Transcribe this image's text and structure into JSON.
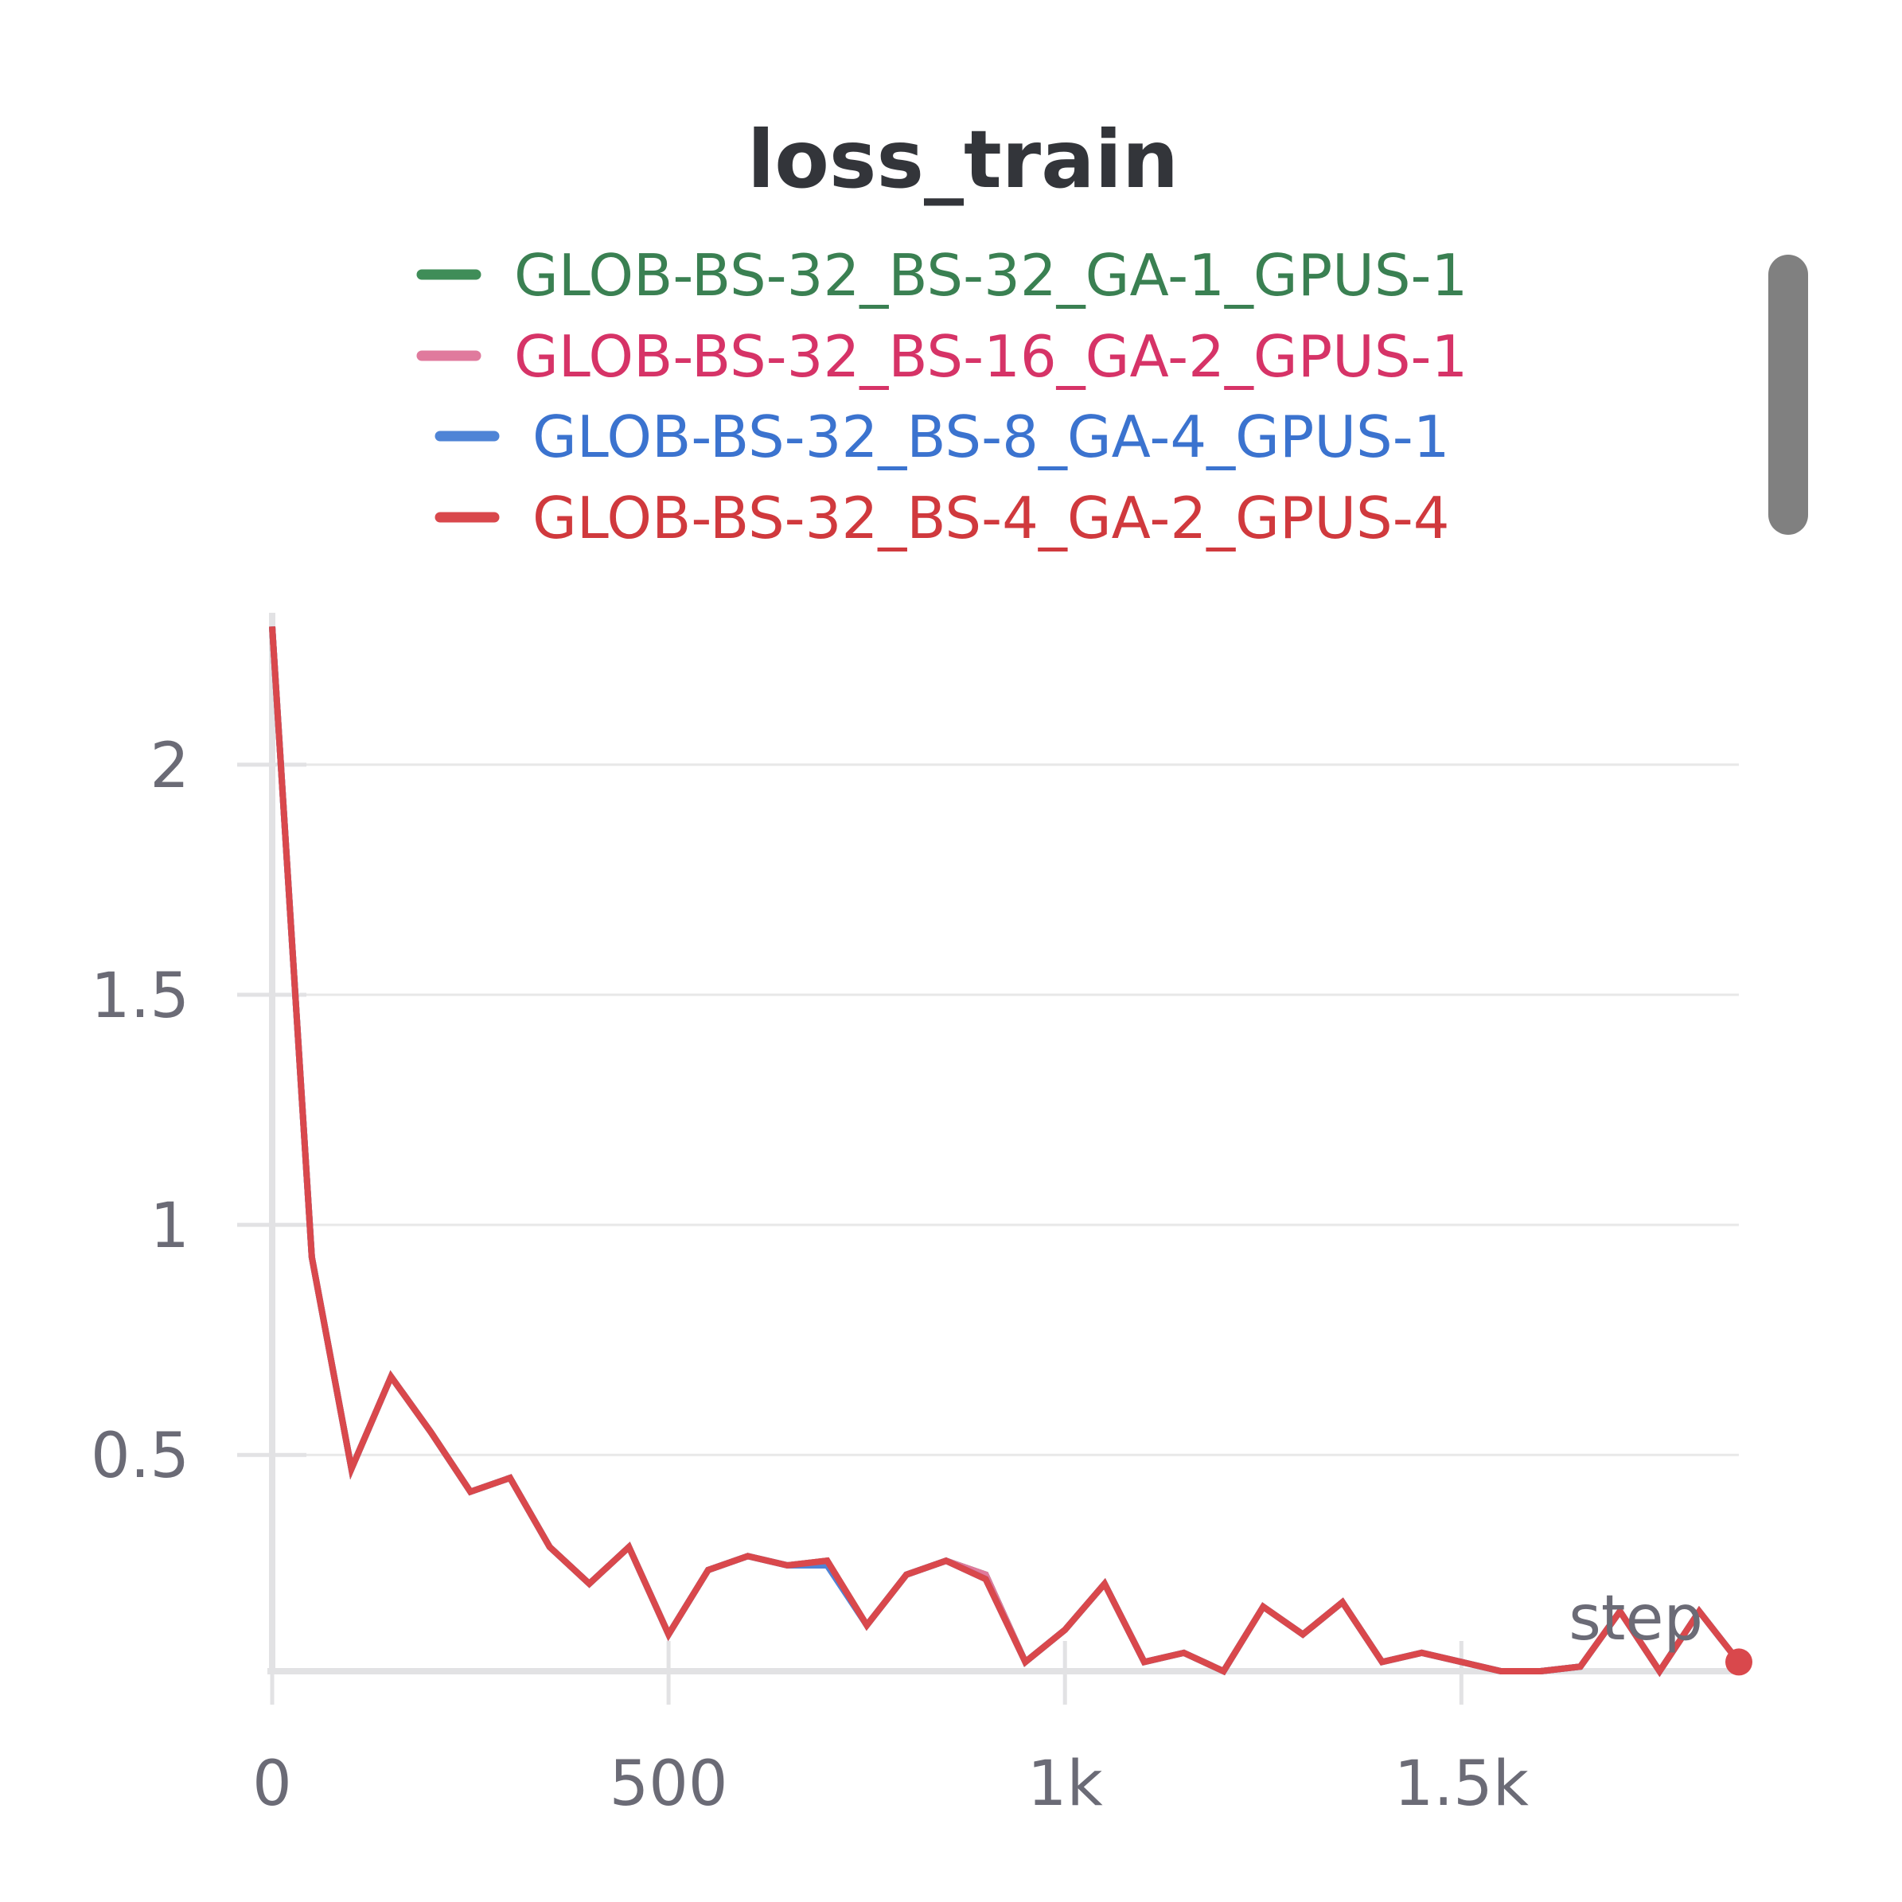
{
  "chart_data": {
    "type": "line",
    "title": "loss_train",
    "xlabel": "step",
    "ylabel": "",
    "xlim": [
      0,
      1850
    ],
    "ylim": [
      0.03,
      2.33
    ],
    "xticks": [
      0,
      500,
      1000,
      1500
    ],
    "xtick_labels": [
      "0",
      "500",
      "1k",
      "1.5k"
    ],
    "yticks": [
      0.5,
      1,
      1.5,
      2
    ],
    "ytick_labels": [
      "0.5",
      "1",
      "1.5",
      "2"
    ],
    "grid": true,
    "legend_position": "top-center",
    "series": [
      {
        "name": "GLOB-BS-32_BS-32_GA-1_GPUS-1",
        "color": "#3f8d58",
        "text_color": "#3a8052",
        "x": [
          0,
          50,
          100,
          150,
          200,
          250,
          300,
          350,
          400,
          450,
          500,
          550,
          600,
          650,
          700,
          750,
          800,
          850,
          900,
          950,
          1000,
          1050,
          1100,
          1150,
          1200,
          1250,
          1300,
          1350,
          1400,
          1450,
          1500,
          1550,
          1600,
          1650,
          1700,
          1750,
          1800,
          1850
        ],
        "y": [
          2.3,
          0.93,
          0.47,
          0.67,
          0.55,
          0.42,
          0.45,
          0.3,
          0.22,
          0.3,
          0.11,
          0.25,
          0.28,
          0.26,
          0.27,
          0.13,
          0.24,
          0.27,
          0.24,
          0.05,
          0.12,
          0.22,
          0.05,
          0.07,
          0.03,
          0.17,
          0.11,
          0.18,
          0.05,
          0.07,
          0.05,
          0.03,
          0.03,
          0.04,
          0.16,
          0.03,
          0.16,
          0.05
        ]
      },
      {
        "name": "GLOB-BS-32_BS-16_GA-2_GPUS-1",
        "color": "#e07a9d",
        "text_color": "#d63367",
        "x": [
          0,
          50,
          100,
          150,
          200,
          250,
          300,
          350,
          400,
          450,
          500,
          550,
          600,
          650,
          700,
          750,
          800,
          850,
          900,
          950,
          1000,
          1050,
          1100,
          1150,
          1200,
          1250,
          1300,
          1350,
          1400,
          1450,
          1500,
          1550,
          1600,
          1650,
          1700,
          1750,
          1800,
          1850
        ],
        "y": [
          2.3,
          0.93,
          0.47,
          0.67,
          0.55,
          0.42,
          0.45,
          0.3,
          0.22,
          0.3,
          0.11,
          0.25,
          0.28,
          0.26,
          0.27,
          0.13,
          0.24,
          0.27,
          0.24,
          0.05,
          0.12,
          0.22,
          0.05,
          0.07,
          0.03,
          0.17,
          0.11,
          0.18,
          0.05,
          0.07,
          0.05,
          0.03,
          0.03,
          0.04,
          0.16,
          0.03,
          0.16,
          0.05
        ]
      },
      {
        "name": "GLOB-BS-32_BS-8_GA-4_GPUS-1",
        "color": "#4f84d6",
        "text_color": "#3b73cf",
        "x": [
          0,
          50,
          100,
          150,
          200,
          250,
          300,
          350,
          400,
          450,
          500,
          550,
          600,
          650,
          700,
          750,
          800,
          850,
          900,
          950,
          1000,
          1050,
          1100,
          1150,
          1200,
          1250,
          1300,
          1350,
          1400,
          1450,
          1500,
          1550,
          1600,
          1650,
          1700,
          1750,
          1800,
          1850
        ],
        "y": [
          2.3,
          0.93,
          0.47,
          0.67,
          0.55,
          0.42,
          0.45,
          0.3,
          0.22,
          0.3,
          0.11,
          0.25,
          0.28,
          0.26,
          0.26,
          0.13,
          0.24,
          0.27,
          0.23,
          0.05,
          0.12,
          0.22,
          0.05,
          0.07,
          0.03,
          0.17,
          0.11,
          0.18,
          0.05,
          0.07,
          0.05,
          0.03,
          0.03,
          0.04,
          0.16,
          0.03,
          0.16,
          0.05
        ]
      },
      {
        "name": "GLOB-BS-32_BS-4_GA-2_GPUS-4",
        "color": "#d9484c",
        "text_color": "#d0393d",
        "x": [
          0,
          50,
          100,
          150,
          200,
          250,
          300,
          350,
          400,
          450,
          500,
          550,
          600,
          650,
          700,
          750,
          800,
          850,
          900,
          950,
          1000,
          1050,
          1100,
          1150,
          1200,
          1250,
          1300,
          1350,
          1400,
          1450,
          1500,
          1550,
          1600,
          1650,
          1700,
          1750,
          1800,
          1850
        ],
        "y": [
          2.3,
          0.93,
          0.47,
          0.67,
          0.55,
          0.42,
          0.45,
          0.3,
          0.22,
          0.3,
          0.11,
          0.25,
          0.28,
          0.26,
          0.27,
          0.13,
          0.24,
          0.27,
          0.23,
          0.05,
          0.12,
          0.22,
          0.05,
          0.07,
          0.03,
          0.17,
          0.11,
          0.18,
          0.05,
          0.07,
          0.05,
          0.03,
          0.03,
          0.04,
          0.16,
          0.03,
          0.16,
          0.05
        ]
      }
    ]
  },
  "scrollbar": {
    "color": "#808080"
  }
}
